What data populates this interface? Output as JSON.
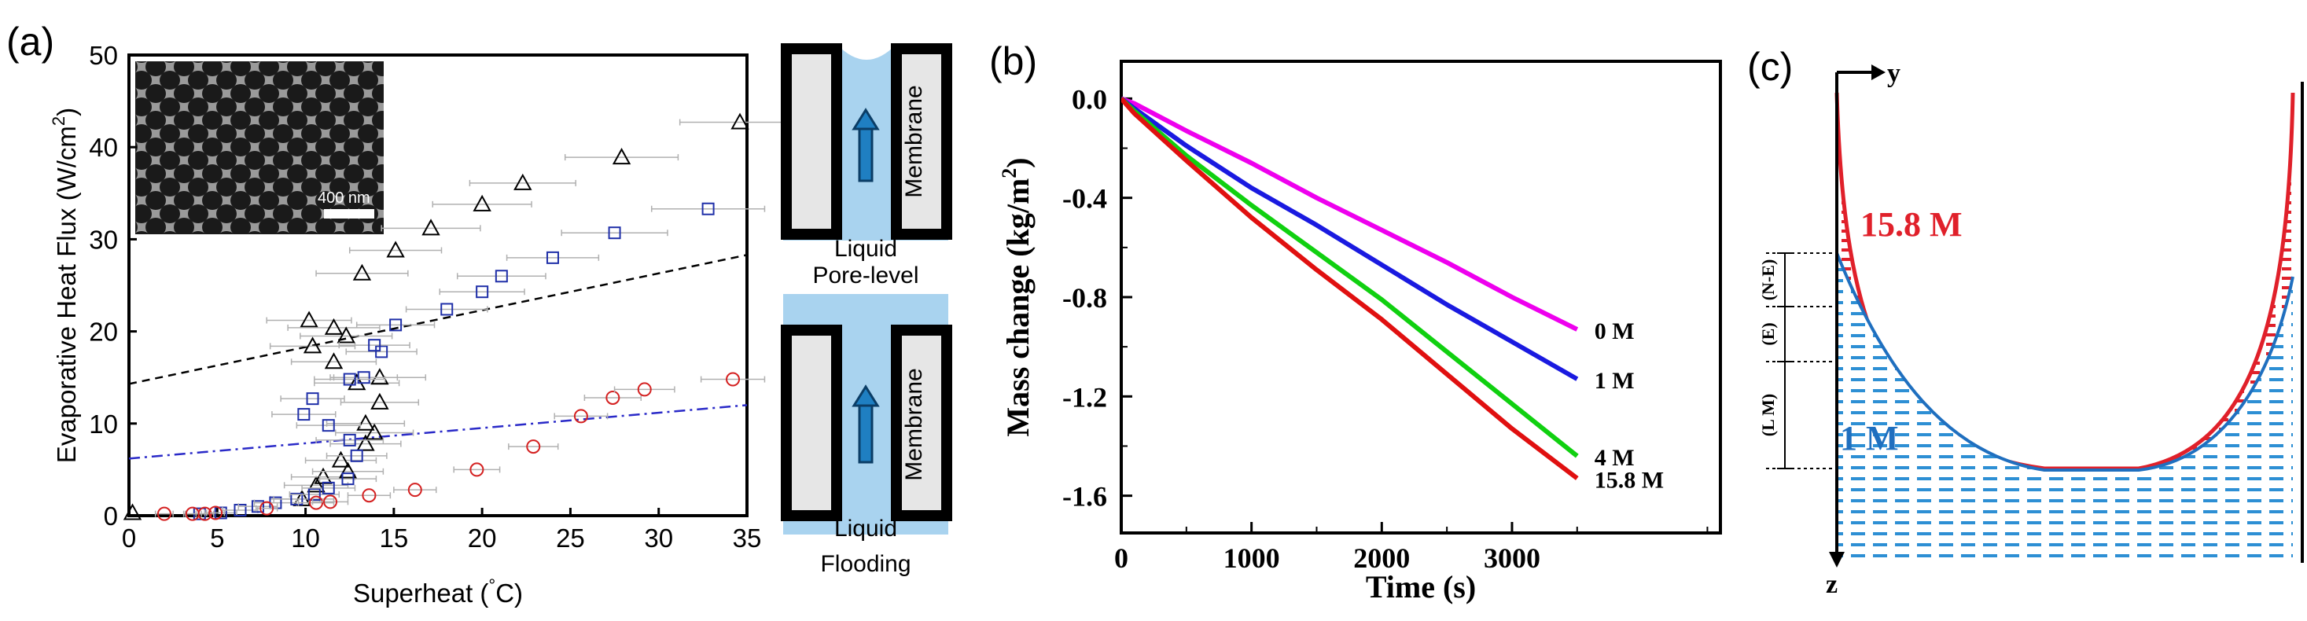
{
  "panel_labels": {
    "a": "(a)",
    "b": "(b)",
    "c": "(c)"
  },
  "chart_data": [
    {
      "type": "scatter",
      "panel": "(a)",
      "xlabel": "Superheat (°C)",
      "xlabel_parts": {
        "main": "Superheat (",
        "sup": "°",
        "tail": "C)"
      },
      "ylabel": "Evaporative Heat Flux (W/cm²)",
      "ylabel_parts": {
        "main": "Evaporative Heat Flux (W/cm",
        "sup": "2",
        "tail": ")"
      },
      "xlim": [
        0,
        35
      ],
      "ylim": [
        0,
        50
      ],
      "xticks": [
        0,
        5,
        10,
        15,
        20,
        25,
        30,
        35
      ],
      "yticks": [
        0,
        10,
        20,
        30,
        40,
        50
      ],
      "inset": {
        "label": "SEM micrograph",
        "scale_text": "400 nm"
      },
      "series": [
        {
          "name": "triangles",
          "marker": "triangle",
          "color": "#000000",
          "x": [
            0.2,
            9.8,
            10.6,
            11.0,
            12.4,
            12.0,
            13.4,
            13.9,
            13.4,
            14.2,
            12.9,
            11.6,
            10.4,
            10.2,
            11.6,
            12.3,
            14.2,
            13.2,
            15.1,
            17.1,
            20.0,
            22.3,
            27.9,
            34.6
          ],
          "y": [
            0.3,
            1.8,
            3.3,
            4.2,
            4.8,
            6.0,
            7.8,
            9.0,
            10.0,
            12.3,
            14.4,
            16.7,
            18.4,
            21.2,
            20.4,
            19.5,
            15.0,
            26.3,
            28.8,
            31.2,
            33.8,
            36.1,
            38.9,
            42.7
          ],
          "xerr": [
            0,
            1.8,
            1.8,
            1.8,
            2.0,
            2.0,
            2.0,
            2.2,
            2.2,
            2.2,
            2.4,
            2.4,
            2.4,
            2.4,
            2.6,
            2.6,
            2.6,
            2.6,
            2.6,
            2.8,
            2.8,
            3.0,
            3.2,
            3.4
          ]
        },
        {
          "name": "squares",
          "marker": "square",
          "color": "#1f2fa8",
          "x": [
            4.0,
            5.2,
            6.3,
            7.3,
            8.3,
            9.5,
            10.5,
            11.3,
            12.4,
            12.9,
            9.9,
            10.4,
            11.3,
            12.5,
            13.3,
            14.3,
            12.5,
            13.9,
            15.1,
            18.0,
            20.0,
            21.1,
            24.0,
            27.5,
            32.8
          ],
          "y": [
            0.2,
            0.3,
            0.6,
            1.0,
            1.4,
            1.8,
            2.3,
            3.0,
            4.0,
            6.5,
            11.0,
            12.7,
            9.8,
            8.2,
            15.0,
            17.8,
            14.8,
            18.5,
            20.7,
            22.4,
            24.3,
            26.0,
            28.0,
            30.7,
            33.3
          ],
          "xerr": [
            0.8,
            0.9,
            1.0,
            1.1,
            1.2,
            1.3,
            1.4,
            1.5,
            1.6,
            1.7,
            1.8,
            1.8,
            1.8,
            1.9,
            1.9,
            2.0,
            2.0,
            2.0,
            2.2,
            2.3,
            2.4,
            2.5,
            2.6,
            3.0,
            3.2
          ]
        },
        {
          "name": "circles",
          "marker": "circle",
          "color": "#d42020",
          "x": [
            2.0,
            3.6,
            4.3,
            4.9,
            7.8,
            10.6,
            11.4,
            13.6,
            16.2,
            19.7,
            22.9,
            25.6,
            27.4,
            29.2,
            34.2
          ],
          "y": [
            0.2,
            0.2,
            0.2,
            0.3,
            0.8,
            1.4,
            1.5,
            2.2,
            2.8,
            5.0,
            7.5,
            10.8,
            12.8,
            13.7,
            14.8
          ],
          "xerr": [
            0.5,
            0.5,
            0.5,
            0.5,
            0.6,
            1.0,
            1.0,
            1.2,
            1.2,
            1.3,
            1.4,
            1.5,
            1.6,
            1.7,
            1.8
          ]
        },
        {
          "name": "dashed black fit",
          "line": "dashed",
          "color": "#000000",
          "x": [
            0,
            35
          ],
          "y": [
            14.3,
            28.3
          ]
        },
        {
          "name": "dash-dot blue fit",
          "line": "dashdot",
          "color": "#2a2ac8",
          "x": [
            0,
            35
          ],
          "y": [
            6.2,
            12.0
          ]
        }
      ]
    },
    {
      "type": "line",
      "panel": "(b)",
      "xlabel": "Time (s)",
      "ylabel": "Mass change (kg/m²)",
      "ylabel_parts": {
        "main": "Mass change (kg/m",
        "sup": "2",
        "tail": ")"
      },
      "xlim": [
        0,
        4600
      ],
      "ylim": [
        -1.75,
        0.15
      ],
      "xticks": [
        0,
        1000,
        2000,
        3000
      ],
      "yticks": [
        0.0,
        -0.4,
        -0.8,
        -1.2,
        -1.6
      ],
      "ytick_labels": [
        "0.0",
        "-0.4",
        "-0.8",
        "-1.2",
        "-1.6"
      ],
      "series": [
        {
          "name": "0 M",
          "color": "#ee00ee",
          "x": [
            0,
            100,
            500,
            1000,
            1500,
            2000,
            2500,
            3000,
            3500
          ],
          "y": [
            0,
            -0.02,
            -0.13,
            -0.26,
            -0.4,
            -0.53,
            -0.66,
            -0.8,
            -0.93
          ]
        },
        {
          "name": "1 M",
          "color": "#1a1ae0",
          "x": [
            0,
            100,
            500,
            1000,
            1500,
            2000,
            2500,
            3000,
            3500
          ],
          "y": [
            0,
            -0.04,
            -0.19,
            -0.36,
            -0.51,
            -0.67,
            -0.83,
            -0.98,
            -1.13
          ]
        },
        {
          "name": "4 M",
          "color": "#10d010",
          "x": [
            0,
            100,
            500,
            1000,
            1500,
            2000,
            2500,
            3000,
            3500
          ],
          "y": [
            0,
            -0.05,
            -0.23,
            -0.43,
            -0.62,
            -0.81,
            -1.02,
            -1.23,
            -1.44
          ]
        },
        {
          "name": "15.8 M",
          "color": "#e01010",
          "x": [
            0,
            100,
            500,
            1000,
            1500,
            2000,
            2500,
            3000,
            3500
          ],
          "y": [
            0,
            -0.06,
            -0.25,
            -0.48,
            -0.69,
            -0.89,
            -1.11,
            -1.33,
            -1.53
          ]
        }
      ]
    }
  ],
  "schematic": {
    "top_label_membrane": "Membrane",
    "top_label_liquid": "Liquid",
    "top_caption": "Pore-level",
    "bottom_label_membrane": "Membrane",
    "bottom_label_liquid": "Liquid",
    "bottom_caption": "Flooding"
  },
  "diagram_c": {
    "axis_y": "y",
    "axis_z": "z",
    "label_high": "15.8 M",
    "label_low": "1 M",
    "region_ne": "(N-E)",
    "region_e": "(E)",
    "region_lm": "(L M)"
  }
}
